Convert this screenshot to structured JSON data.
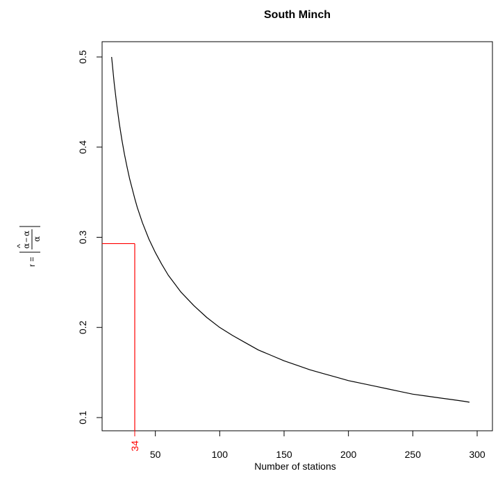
{
  "chart_data": {
    "type": "line",
    "title": "South Minch",
    "xlabel": "Number of stations",
    "ylabel": {
      "prefix": "r =",
      "numerator_left": "α",
      "hat": "^",
      "minus": "−",
      "numerator_right": "α",
      "denominator": "α"
    },
    "xlim": [
      0,
      300
    ],
    "ylim": [
      0.1,
      0.5
    ],
    "x_ticks": [
      50,
      100,
      150,
      200,
      250,
      300
    ],
    "y_ticks": [
      0.1,
      0.2,
      0.3,
      0.4,
      0.5
    ],
    "series": [
      {
        "color": "#000000",
        "x": [
          16,
          18,
          20,
          22,
          24,
          26,
          28,
          30,
          32,
          34,
          36,
          40,
          45,
          50,
          55,
          60,
          70,
          80,
          90,
          100,
          110,
          120,
          130,
          140,
          150,
          160,
          170,
          180,
          190,
          200,
          210,
          220,
          230,
          240,
          250,
          260,
          270,
          280,
          290,
          294
        ],
        "y": [
          0.5,
          0.471,
          0.447,
          0.426,
          0.408,
          0.392,
          0.378,
          0.365,
          0.354,
          0.343,
          0.333,
          0.316,
          0.298,
          0.283,
          0.27,
          0.258,
          0.239,
          0.224,
          0.211,
          0.2,
          0.191,
          0.183,
          0.175,
          0.169,
          0.163,
          0.158,
          0.153,
          0.149,
          0.145,
          0.141,
          0.138,
          0.135,
          0.132,
          0.129,
          0.126,
          0.124,
          0.122,
          0.12,
          0.118,
          0.117
        ]
      }
    ],
    "annotation": {
      "color": "#ff0000",
      "x": 34,
      "y": 0.293,
      "x_label": "34"
    },
    "grid": false,
    "legend": "none"
  }
}
